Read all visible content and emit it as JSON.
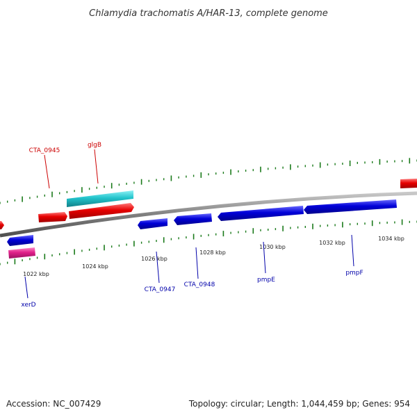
{
  "title": "Chlamydia trachomatis A/HAR-13, complete genome",
  "footer": {
    "accession": "Accession: NC_007429",
    "summary": "Topology: circular; Length: 1,044,459 bp; Genes: 954"
  },
  "colors": {
    "forward_gene": "#e60000",
    "reverse_gene": "#0000d8",
    "rna_gene": "#22c4cc",
    "pseudo_gene": "#e0208a",
    "backbone": "#808080",
    "tick": "#1a7a1a",
    "label_forward": "#cc0000",
    "label_reverse": "#0000aa"
  },
  "scale": {
    "ticks": [
      {
        "label": "1022 kbp"
      },
      {
        "label": "1024 kbp"
      },
      {
        "label": "1026 kbp"
      },
      {
        "label": "1028 kbp"
      },
      {
        "label": "1030 kbp"
      },
      {
        "label": "1032 kbp"
      },
      {
        "label": "1034 kbp"
      }
    ]
  },
  "gene_labels": {
    "cta0945": "CTA_0945",
    "glgb": "glgB",
    "xerd": "xerD",
    "cta0947": "CTA_0947",
    "cta0948": "CTA_0948",
    "pmpe": "pmpE",
    "pmpf": "pmpF"
  }
}
